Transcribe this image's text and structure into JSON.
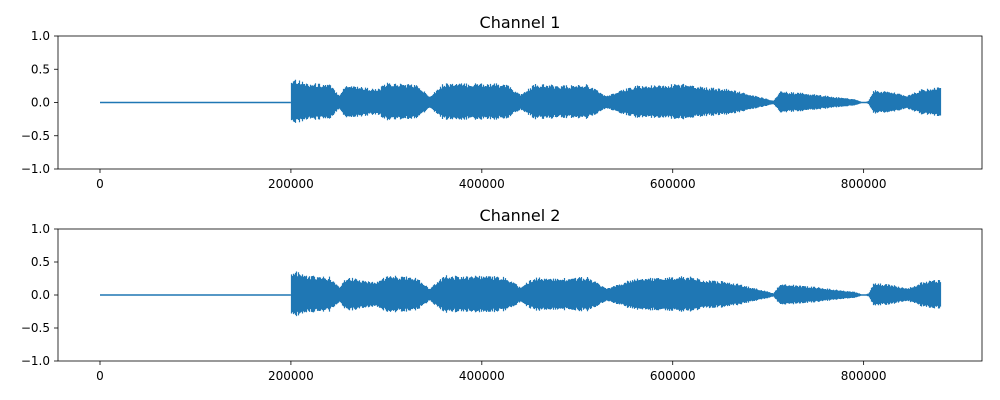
{
  "chart_data": [
    {
      "type": "line",
      "title": "Channel 1",
      "xlabel": "",
      "ylabel": "",
      "xlim": [
        -44000,
        924000
      ],
      "ylim": [
        -1.0,
        1.0
      ],
      "xticks": [
        0,
        200000,
        400000,
        600000,
        800000
      ],
      "xtick_labels": [
        "0",
        "200000",
        "400000",
        "600000",
        "800000"
      ],
      "yticks": [
        -1.0,
        -0.5,
        0.0,
        0.5,
        1.0
      ],
      "ytick_labels": [
        "−1.0",
        "−0.5",
        "0.0",
        "0.5",
        "1.0"
      ],
      "grid": false,
      "color": "#1f77b4",
      "silence_end": 200000,
      "samples_end": 880000,
      "envelope": {
        "x": [
          200000,
          202000,
          215000,
          240000,
          250000,
          258000,
          270000,
          290000,
          300000,
          330000,
          345000,
          360000,
          380000,
          400000,
          425000,
          440000,
          455000,
          470000,
          490000,
          510000,
          530000,
          560000,
          590000,
          600000,
          615000,
          630000,
          660000,
          700000,
          705000,
          712000,
          740000,
          790000,
          800000,
          805000,
          810000,
          830000,
          845000,
          860000,
          880000
        ],
        "amplitude": [
          0.33,
          0.38,
          0.3,
          0.28,
          0.12,
          0.28,
          0.25,
          0.2,
          0.3,
          0.28,
          0.1,
          0.3,
          0.29,
          0.3,
          0.28,
          0.12,
          0.28,
          0.27,
          0.26,
          0.28,
          0.1,
          0.26,
          0.26,
          0.28,
          0.29,
          0.24,
          0.2,
          0.05,
          0.03,
          0.17,
          0.14,
          0.05,
          0.0,
          0.03,
          0.19,
          0.16,
          0.1,
          0.2,
          0.24
        ]
      }
    },
    {
      "type": "line",
      "title": "Channel 2",
      "xlabel": "",
      "ylabel": "",
      "xlim": [
        -44000,
        924000
      ],
      "ylim": [
        -1.0,
        1.0
      ],
      "xticks": [
        0,
        200000,
        400000,
        600000,
        800000
      ],
      "xtick_labels": [
        "0",
        "200000",
        "400000",
        "600000",
        "800000"
      ],
      "yticks": [
        -1.0,
        -0.5,
        0.0,
        0.5,
        1.0
      ],
      "ytick_labels": [
        "−1.0",
        "−0.5",
        "0.0",
        "0.5",
        "1.0"
      ],
      "grid": false,
      "color": "#1f77b4",
      "silence_end": 200000,
      "samples_end": 880000,
      "envelope": {
        "x": [
          200000,
          202000,
          215000,
          240000,
          250000,
          258000,
          270000,
          290000,
          300000,
          330000,
          345000,
          360000,
          380000,
          400000,
          425000,
          440000,
          455000,
          470000,
          490000,
          510000,
          530000,
          560000,
          590000,
          600000,
          615000,
          630000,
          660000,
          700000,
          705000,
          712000,
          740000,
          790000,
          800000,
          805000,
          810000,
          830000,
          845000,
          860000,
          880000
        ],
        "amplitude": [
          0.33,
          0.38,
          0.3,
          0.28,
          0.12,
          0.28,
          0.25,
          0.2,
          0.3,
          0.28,
          0.1,
          0.3,
          0.29,
          0.3,
          0.28,
          0.12,
          0.28,
          0.27,
          0.26,
          0.28,
          0.1,
          0.26,
          0.26,
          0.28,
          0.29,
          0.24,
          0.2,
          0.05,
          0.03,
          0.17,
          0.14,
          0.05,
          0.0,
          0.03,
          0.19,
          0.16,
          0.1,
          0.2,
          0.24
        ]
      }
    }
  ]
}
